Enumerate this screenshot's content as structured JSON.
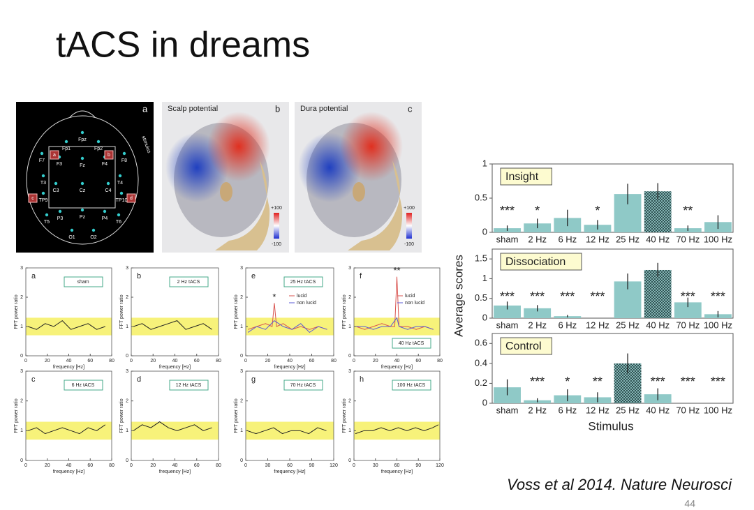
{
  "title": "tACS in dreams",
  "citation": "Voss et al 2014. Nature Neurosci",
  "page_number": "44",
  "maps": [
    {
      "letter": "a",
      "stimulus_label": "stimulus",
      "stim_sites": [
        "a",
        "b",
        "c",
        "d"
      ],
      "electrodes": [
        "Fp1",
        "Fpz",
        "Fp2",
        "F7",
        "F3",
        "Fz",
        "F4",
        "F8",
        "T3",
        "C3",
        "Cz",
        "C4",
        "T4",
        "TP9",
        "TP10",
        "T5",
        "P3",
        "Pz",
        "P4",
        "T6",
        "O1",
        "O2"
      ]
    },
    {
      "letter": "b",
      "title": "Scalp potential",
      "scale": [
        "+100",
        "-100"
      ]
    },
    {
      "letter": "c",
      "title": "Dura potential",
      "scale": [
        "+100",
        "-100"
      ]
    }
  ],
  "chart_data": [
    {
      "type": "line",
      "letter": "a",
      "label": "sham",
      "xlabel": "frequency  [Hz]",
      "ylabel": "FFT power ratio",
      "xlim": [
        0,
        80
      ],
      "xticks": [
        0,
        20,
        40,
        60,
        80
      ],
      "ylim": [
        0,
        3
      ],
      "yticks": [
        0,
        1,
        2,
        3
      ],
      "band": [
        0.7,
        1.3
      ],
      "series": [
        {
          "color": "#222",
          "x": [
            2,
            10,
            18,
            26,
            34,
            42,
            50,
            58,
            66,
            74
          ],
          "values": [
            1.0,
            0.9,
            1.1,
            1.0,
            1.2,
            0.9,
            1.0,
            1.1,
            0.9,
            1.0
          ]
        }
      ]
    },
    {
      "type": "line",
      "letter": "b",
      "label": "2 Hz  tACS",
      "xlabel": "frequency  [Hz]",
      "ylabel": "FFT power ratio",
      "xlim": [
        0,
        80
      ],
      "xticks": [
        0,
        20,
        40,
        60,
        80
      ],
      "ylim": [
        0,
        3
      ],
      "yticks": [
        0,
        1,
        2,
        3
      ],
      "band": [
        0.7,
        1.3
      ],
      "series": [
        {
          "color": "#222",
          "x": [
            2,
            10,
            18,
            26,
            34,
            42,
            50,
            58,
            66,
            74
          ],
          "values": [
            1.0,
            1.1,
            0.9,
            1.0,
            1.1,
            1.2,
            0.9,
            1.0,
            1.1,
            0.9
          ]
        }
      ]
    },
    {
      "type": "line",
      "letter": "e",
      "label": "25 Hz  tACS",
      "xlabel": "frequency  [Hz]",
      "ylabel": "FFT power ratio",
      "xlim": [
        0,
        80
      ],
      "xticks": [
        0,
        20,
        40,
        60,
        80
      ],
      "ylim": [
        0,
        3
      ],
      "yticks": [
        0,
        1,
        2,
        3
      ],
      "band": [
        0.7,
        1.3
      ],
      "significance": "*",
      "series": [
        {
          "name": "lucid",
          "color": "#d9534f",
          "x": [
            2,
            10,
            18,
            24,
            26,
            28,
            34,
            42,
            50,
            58,
            66,
            74
          ],
          "values": [
            0.9,
            1.0,
            1.1,
            1.0,
            1.8,
            1.0,
            1.1,
            0.9,
            1.0,
            0.9,
            1.0,
            0.9
          ]
        },
        {
          "name": "non lucid",
          "color": "#5a5ad6",
          "x": [
            2,
            10,
            18,
            26,
            34,
            42,
            50,
            58,
            66,
            74
          ],
          "values": [
            0.8,
            1.0,
            0.9,
            1.2,
            1.0,
            0.9,
            1.1,
            0.8,
            1.0,
            0.9
          ]
        }
      ]
    },
    {
      "type": "line",
      "letter": "f",
      "label": "40 Hz  tACS",
      "xlabel": "frequency  [Hz]",
      "ylabel": "FFT power ratio",
      "xlim": [
        0,
        80
      ],
      "xticks": [
        0,
        20,
        40,
        60,
        80
      ],
      "ylim": [
        0,
        3
      ],
      "yticks": [
        0,
        1,
        2,
        3
      ],
      "band": [
        0.7,
        1.3
      ],
      "significance": "**",
      "series": [
        {
          "name": "lucid",
          "color": "#d9534f",
          "x": [
            2,
            10,
            18,
            26,
            34,
            38,
            40,
            42,
            50,
            58,
            66,
            74
          ],
          "values": [
            1.0,
            0.9,
            1.0,
            1.1,
            1.0,
            1.0,
            2.7,
            1.0,
            1.0,
            0.9,
            1.0,
            0.9
          ]
        },
        {
          "name": "non lucid",
          "color": "#5a5ad6",
          "x": [
            2,
            10,
            18,
            26,
            34,
            40,
            42,
            50,
            58,
            66,
            74
          ],
          "values": [
            1.0,
            1.0,
            0.9,
            1.0,
            1.0,
            1.3,
            1.0,
            0.9,
            1.0,
            1.0,
            0.9
          ]
        }
      ]
    },
    {
      "type": "line",
      "letter": "c",
      "label": "6 Hz  tACS",
      "xlabel": "frequency  [Hz]",
      "ylabel": "FFT power ratio",
      "xlim": [
        0,
        80
      ],
      "xticks": [
        0,
        20,
        40,
        60,
        80
      ],
      "ylim": [
        0,
        3
      ],
      "yticks": [
        0,
        1,
        2,
        3
      ],
      "band": [
        0.7,
        1.3
      ],
      "series": [
        {
          "color": "#222",
          "x": [
            2,
            10,
            18,
            26,
            34,
            42,
            50,
            58,
            66,
            74
          ],
          "values": [
            1.0,
            1.1,
            0.9,
            1.0,
            1.1,
            1.0,
            0.9,
            1.1,
            1.0,
            1.2
          ]
        }
      ]
    },
    {
      "type": "line",
      "letter": "d",
      "label": "12 Hz  tACS",
      "xlabel": "frequency  [Hz]",
      "ylabel": "FFT power ratio",
      "xlim": [
        0,
        80
      ],
      "xticks": [
        0,
        20,
        40,
        60,
        80
      ],
      "ylim": [
        0,
        3
      ],
      "yticks": [
        0,
        1,
        2,
        3
      ],
      "band": [
        0.7,
        1.3
      ],
      "series": [
        {
          "color": "#222",
          "x": [
            2,
            10,
            18,
            26,
            34,
            42,
            50,
            58,
            66,
            74
          ],
          "values": [
            1.0,
            1.2,
            1.1,
            1.3,
            1.1,
            1.0,
            1.1,
            1.2,
            1.0,
            1.1
          ]
        }
      ]
    },
    {
      "type": "line",
      "letter": "g",
      "label": "70 Hz  tACS",
      "xlabel": "frequency  [Hz]",
      "ylabel": "FFT power ratio",
      "xlim": [
        0,
        120
      ],
      "xticks": [
        0,
        30,
        60,
        90,
        120
      ],
      "ylim": [
        0,
        3
      ],
      "yticks": [
        0,
        1,
        2,
        3
      ],
      "band": [
        0.7,
        1.3
      ],
      "series": [
        {
          "color": "#222",
          "x": [
            2,
            14,
            26,
            38,
            50,
            62,
            74,
            86,
            98,
            110
          ],
          "values": [
            1.0,
            0.9,
            1.0,
            1.1,
            0.9,
            1.0,
            1.0,
            0.9,
            1.1,
            1.0
          ]
        }
      ]
    },
    {
      "type": "line",
      "letter": "h",
      "label": "100 Hz  tACS",
      "xlabel": "frequency  [Hz]",
      "ylabel": "FFT power ratio",
      "xlim": [
        0,
        120
      ],
      "xticks": [
        0,
        30,
        60,
        90,
        120
      ],
      "ylim": [
        0,
        3
      ],
      "yticks": [
        0,
        1,
        2,
        3
      ],
      "band": [
        0.7,
        1.3
      ],
      "series": [
        {
          "color": "#222",
          "x": [
            2,
            14,
            26,
            38,
            50,
            62,
            74,
            86,
            98,
            110,
            118
          ],
          "values": [
            0.9,
            1.0,
            1.0,
            1.1,
            1.0,
            1.1,
            1.0,
            1.1,
            1.0,
            1.1,
            1.2
          ]
        }
      ]
    },
    {
      "type": "bar",
      "title": "Insight",
      "ylabel": "Average scores",
      "color": "#8fc9c7",
      "hatched": 5,
      "categories": [
        "sham",
        "2 Hz",
        "6 Hz",
        "12 Hz",
        "25 Hz",
        "40 Hz",
        "70 Hz",
        "100 Hz"
      ],
      "values": [
        0.06,
        0.13,
        0.21,
        0.11,
        0.56,
        0.6,
        0.06,
        0.15
      ],
      "errors": [
        0.04,
        0.07,
        0.12,
        0.07,
        0.15,
        0.12,
        0.04,
        0.1
      ],
      "significance": [
        "***",
        "*",
        null,
        "*",
        null,
        null,
        "**",
        null
      ],
      "ylim": [
        0,
        1
      ],
      "yticks": [
        0,
        0.5,
        1
      ]
    },
    {
      "type": "bar",
      "title": "Dissociation",
      "color": "#8fc9c7",
      "hatched": 5,
      "categories": [
        "sham",
        "2 Hz",
        "6 Hz",
        "12 Hz",
        "25 Hz",
        "40 Hz",
        "70 Hz",
        "100 Hz"
      ],
      "values": [
        0.32,
        0.25,
        0.05,
        0,
        0.93,
        1.22,
        0.4,
        0.1
      ],
      "errors": [
        0.1,
        0.08,
        0.03,
        0,
        0.2,
        0.18,
        0.12,
        0.08
      ],
      "significance": [
        "***",
        "***",
        "***",
        "***",
        null,
        null,
        "***",
        "***"
      ],
      "ylim": [
        0,
        1.75
      ],
      "yticks": [
        0,
        0.5,
        1,
        1.5
      ]
    },
    {
      "type": "bar",
      "title": "Control",
      "xlabel": "Stimulus",
      "color": "#8fc9c7",
      "hatched": 4,
      "categories": [
        "sham",
        "2 Hz",
        "6 Hz",
        "12 Hz",
        "25 Hz",
        "40 Hz",
        "70 Hz",
        "100 Hz"
      ],
      "values": [
        0.16,
        0.03,
        0.08,
        0.06,
        0.4,
        0.09,
        0,
        0
      ],
      "errors": [
        0.08,
        0.02,
        0.06,
        0.05,
        0.1,
        0.06,
        0,
        0
      ],
      "significance": [
        null,
        "***",
        "*",
        "**",
        null,
        "***",
        "***",
        "***"
      ],
      "ylim": [
        0,
        0.7
      ],
      "yticks": [
        0,
        0.2,
        0.4,
        0.6
      ]
    }
  ]
}
